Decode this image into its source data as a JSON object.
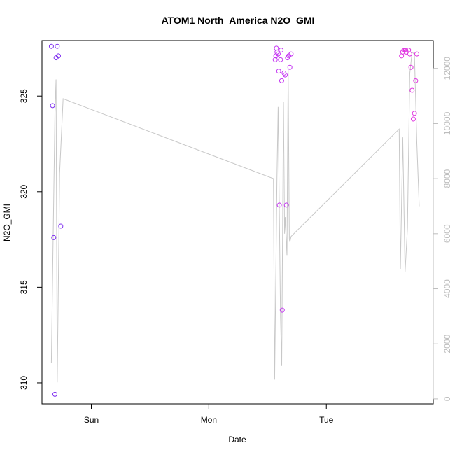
{
  "chart_data": {
    "type": "scatter",
    "title": "ATOM1 North_America N2O_GMI",
    "xlabel": "Date",
    "ylabel": "N2O_GMI",
    "x_ticks": [
      "Sun",
      "Mon",
      "Tue"
    ],
    "y_ticks": [
      310,
      315,
      320,
      325
    ],
    "y_right_ticks": [
      0,
      2000,
      4000,
      6000,
      8000,
      10000,
      12000
    ],
    "xlim": [
      -1.42,
      1.91
    ],
    "ylim": [
      308.9,
      327.9
    ],
    "y_right_lim": [
      -180,
      13010
    ],
    "series": [
      {
        "kind": "points",
        "axis": "left",
        "marker": "open-circle",
        "points": [
          {
            "x": -1.34,
            "y": 327.6,
            "color": "#7f2ff0"
          },
          {
            "x": -1.33,
            "y": 324.5,
            "color": "#7f2ff0"
          },
          {
            "x": -1.32,
            "y": 317.6,
            "color": "#7f2ff0"
          },
          {
            "x": -1.31,
            "y": 309.4,
            "color": "#7f2ff0"
          },
          {
            "x": -1.3,
            "y": 327.0,
            "color": "#7f2ff0"
          },
          {
            "x": -1.29,
            "y": 327.6,
            "color": "#7f2ff0"
          },
          {
            "x": -1.28,
            "y": 327.1,
            "color": "#7f2ff0"
          },
          {
            "x": -1.26,
            "y": 318.2,
            "color": "#7f2ff0"
          },
          {
            "x": 0.565,
            "y": 326.9,
            "color": "#c433f2"
          },
          {
            "x": 0.57,
            "y": 327.1,
            "color": "#c433f2"
          },
          {
            "x": 0.575,
            "y": 327.5,
            "color": "#c433f2"
          },
          {
            "x": 0.58,
            "y": 327.3,
            "color": "#c433f2"
          },
          {
            "x": 0.59,
            "y": 327.2,
            "color": "#c433f2"
          },
          {
            "x": 0.595,
            "y": 326.3,
            "color": "#c433f2"
          },
          {
            "x": 0.6,
            "y": 319.3,
            "color": "#c433f2"
          },
          {
            "x": 0.61,
            "y": 326.9,
            "color": "#c433f2"
          },
          {
            "x": 0.615,
            "y": 327.4,
            "color": "#c433f2"
          },
          {
            "x": 0.62,
            "y": 325.8,
            "color": "#c433f2"
          },
          {
            "x": 0.625,
            "y": 313.8,
            "color": "#c433f2"
          },
          {
            "x": 0.64,
            "y": 326.2,
            "color": "#c433f2"
          },
          {
            "x": 0.65,
            "y": 326.1,
            "color": "#c433f2"
          },
          {
            "x": 0.66,
            "y": 319.3,
            "color": "#c433f2"
          },
          {
            "x": 0.67,
            "y": 327.0,
            "color": "#c433f2"
          },
          {
            "x": 0.68,
            "y": 327.1,
            "color": "#c433f2"
          },
          {
            "x": 0.69,
            "y": 326.5,
            "color": "#c433f2"
          },
          {
            "x": 0.7,
            "y": 327.2,
            "color": "#c433f2"
          },
          {
            "x": 1.64,
            "y": 327.1,
            "color": "#e035e0"
          },
          {
            "x": 1.65,
            "y": 327.3,
            "color": "#e035e0"
          },
          {
            "x": 1.66,
            "y": 327.4,
            "color": "#e035e0"
          },
          {
            "x": 1.67,
            "y": 327.4,
            "color": "#e035e0"
          },
          {
            "x": 1.675,
            "y": 327.4,
            "color": "#e035e0"
          },
          {
            "x": 1.68,
            "y": 327.3,
            "color": "#e035e0"
          },
          {
            "x": 1.7,
            "y": 327.4,
            "color": "#e035e0"
          },
          {
            "x": 1.71,
            "y": 327.2,
            "color": "#e035e0"
          },
          {
            "x": 1.72,
            "y": 326.5,
            "color": "#e035e0"
          },
          {
            "x": 1.73,
            "y": 325.3,
            "color": "#e035e0"
          },
          {
            "x": 1.74,
            "y": 323.8,
            "color": "#e035e0"
          },
          {
            "x": 1.75,
            "y": 324.1,
            "color": "#e035e0"
          },
          {
            "x": 1.76,
            "y": 325.8,
            "color": "#e035e0"
          },
          {
            "x": 1.77,
            "y": 327.2,
            "color": "#e035e0"
          }
        ]
      },
      {
        "kind": "line",
        "axis": "right",
        "color": "#c8c8c8",
        "x": [
          -1.34,
          -1.31,
          -1.3,
          -1.29,
          -1.27,
          -1.24,
          0.55,
          0.56,
          0.58,
          0.59,
          0.61,
          0.62,
          0.635,
          0.645,
          0.65,
          0.665,
          0.675,
          0.685,
          0.69,
          0.7,
          1.62,
          1.63,
          1.65,
          1.67,
          1.69,
          1.71,
          1.73,
          1.75,
          1.77,
          1.79
        ],
        "y": [
          1300,
          10400,
          11600,
          600,
          8200,
          10900,
          8000,
          700,
          8000,
          10600,
          3000,
          1200,
          10800,
          6000,
          6600,
          5200,
          12000,
          5800,
          5700,
          5900,
          9800,
          4700,
          9500,
          4600,
          6200,
          11800,
          12600,
          12500,
          9300,
          7000
        ]
      }
    ]
  }
}
